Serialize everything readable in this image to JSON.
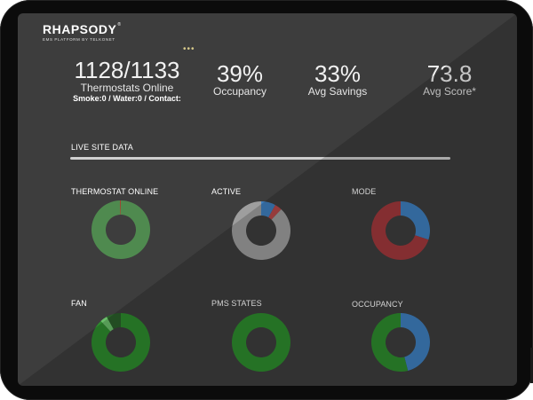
{
  "brand": {
    "logo": "RHAPSODY",
    "registered": "®",
    "subtitle": "EMS PLATFORM BY TELKONET"
  },
  "stats": {
    "thermostats_value": "1128/1133",
    "thermostats_label": "Thermostats Online",
    "sensors_line": "Smoke:0 / Water:0 / Contact:",
    "occupancy_value": "39%",
    "occupancy_label": "Occupancy",
    "savings_value": "33%",
    "savings_label": "Avg Savings",
    "score_value": "73.8",
    "score_label": "Avg Score*"
  },
  "more_icon": "ellipsis-icon",
  "more_text": "•••",
  "section": {
    "title": "LIVE SITE DATA"
  },
  "charts": {
    "thermostat_online": {
      "title": "THERMOSTAT ONLINE",
      "segments": [
        {
          "value": 99.6,
          "color": "#4f8a4f"
        },
        {
          "value": 0.4,
          "color": "#c0392b"
        }
      ]
    },
    "active": {
      "title": "ACTIVE",
      "segments": [
        {
          "value": 8,
          "color": "#3f7fbf"
        },
        {
          "value": 4,
          "color": "#b8484a"
        },
        {
          "value": 88,
          "color": "#9e9e9e"
        }
      ]
    },
    "mode": {
      "title": "MODE",
      "segments": [
        {
          "value": 30,
          "color": "#3f7fbf"
        },
        {
          "value": 70,
          "color": "#a2393c"
        }
      ]
    },
    "fan": {
      "title": "FAN",
      "segments": [
        {
          "value": 88,
          "color": "#2e8b2e"
        },
        {
          "value": 4,
          "color": "#6abf6a"
        },
        {
          "value": 8,
          "color": "#2a5f2a"
        }
      ]
    },
    "pms_states": {
      "title": "PMS STATES",
      "segments": [
        {
          "value": 100,
          "color": "#2e8b2e"
        }
      ]
    },
    "occupancy": {
      "title": "OCCUPANCY",
      "segments": [
        {
          "value": 46,
          "color": "#3f7fbf"
        },
        {
          "value": 54,
          "color": "#2e8b2e"
        }
      ]
    }
  }
}
